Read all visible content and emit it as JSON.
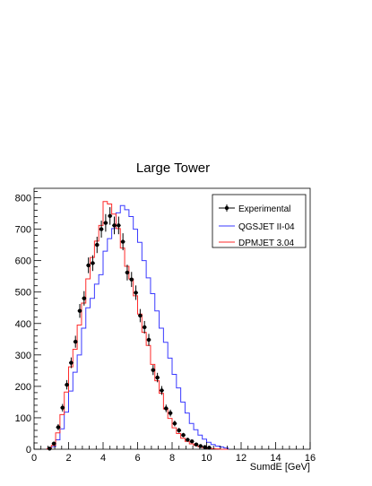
{
  "chart_data": {
    "type": "histogram",
    "title": "Large Tower",
    "xlabel": "SumdE [GeV]",
    "ylabel": "",
    "xlim": [
      0,
      16
    ],
    "ylim": [
      0,
      830
    ],
    "x_ticks": [
      0,
      2,
      4,
      6,
      8,
      10,
      12,
      14,
      16
    ],
    "y_ticks": [
      0,
      100,
      200,
      300,
      400,
      500,
      600,
      700,
      800
    ],
    "grid": false,
    "legend_position": "top-right",
    "series": [
      {
        "name": "Experimental",
        "style": "points-with-errors",
        "color": "#000000",
        "x": [
          0.9,
          1.15,
          1.4,
          1.65,
          1.9,
          2.15,
          2.4,
          2.65,
          2.9,
          3.15,
          3.4,
          3.65,
          3.9,
          4.15,
          4.4,
          4.65,
          4.9,
          5.15,
          5.4,
          5.65,
          5.9,
          6.15,
          6.4,
          6.65,
          6.9,
          7.15,
          7.4,
          7.65,
          7.9,
          8.15,
          8.4,
          8.65,
          8.9,
          9.15,
          9.4,
          9.65,
          9.9,
          10.15
        ],
        "y": [
          2,
          18,
          70,
          132,
          205,
          275,
          342,
          440,
          480,
          585,
          592,
          650,
          700,
          720,
          742,
          712,
          712,
          660,
          562,
          540,
          498,
          425,
          388,
          348,
          252,
          228,
          187,
          130,
          115,
          82,
          60,
          45,
          30,
          25,
          15,
          10,
          7,
          5
        ],
        "err": [
          1,
          5,
          10,
          12,
          15,
          17,
          19,
          22,
          23,
          25,
          25,
          26,
          27,
          28,
          28,
          28,
          28,
          27,
          25,
          24,
          23,
          21,
          20,
          19,
          16,
          15,
          14,
          12,
          11,
          9,
          8,
          7,
          6,
          5,
          4,
          3,
          3,
          2
        ]
      },
      {
        "name": "QGSJET II-04",
        "style": "step",
        "color": "#3a3aff",
        "bin_start": 0.75,
        "bin_width": 0.25,
        "values": [
          2,
          8,
          30,
          65,
          118,
          185,
          245,
          300,
          385,
          450,
          480,
          525,
          555,
          630,
          670,
          702,
          752,
          775,
          762,
          740,
          700,
          658,
          600,
          545,
          495,
          440,
          385,
          340,
          290,
          238,
          195,
          150,
          115,
          82,
          62,
          45,
          32,
          22,
          15,
          10,
          7,
          4
        ]
      },
      {
        "name": "DPMJET 3.04",
        "style": "step",
        "color": "#ff2a2a",
        "bin_start": 0.75,
        "bin_width": 0.25,
        "values": [
          2,
          12,
          52,
          110,
          182,
          262,
          318,
          395,
          465,
          542,
          610,
          662,
          712,
          788,
          780,
          748,
          702,
          640,
          582,
          542,
          488,
          430,
          372,
          330,
          270,
          218,
          178,
          128,
          98,
          68,
          50,
          35,
          25,
          17,
          12,
          8,
          5,
          3,
          2,
          1,
          0,
          0
        ]
      }
    ]
  }
}
